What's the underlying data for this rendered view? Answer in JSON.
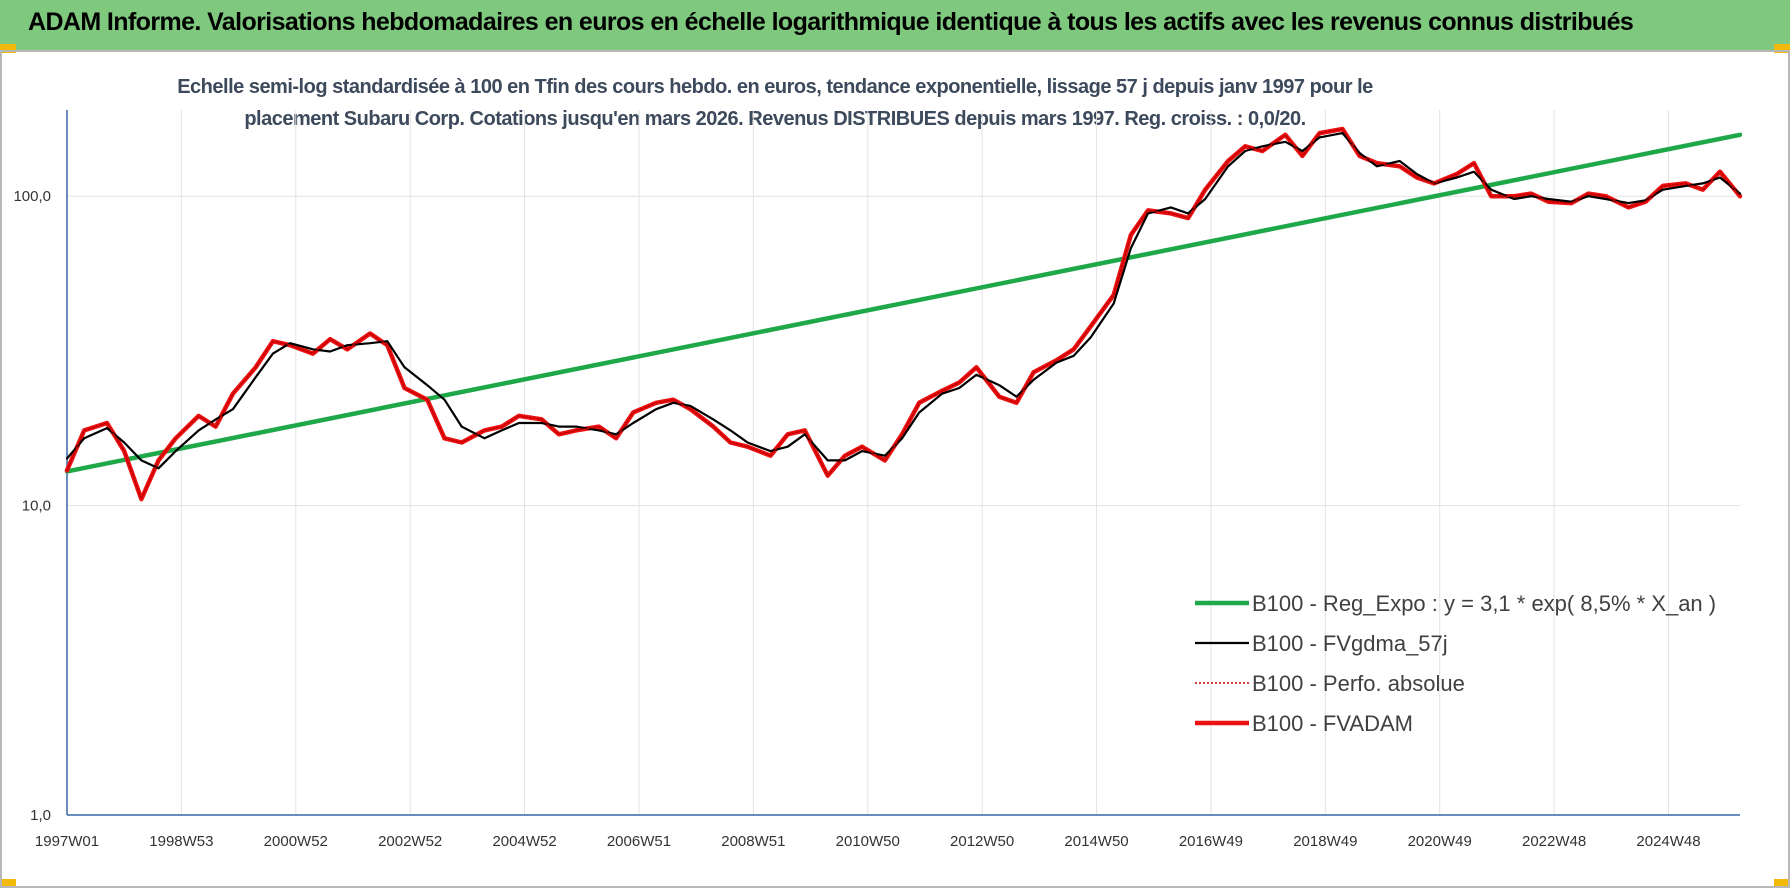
{
  "header": {
    "title": "ADAM Informe. Valorisations hebdomadaires en euros en échelle logarithmique identique à tous les actifs avec les revenus connus distribués"
  },
  "chart_data": {
    "type": "line",
    "title_lines": [
      "Echelle semi-log standardisée à 100 en Tfin des cours hebdo. en euros, tendance exponentielle, lissage 57 j depuis janv 1997 pour le",
      "placement Subaru Corp. Cotations jusqu'en mars 2026. Revenus DISTRIBUES depuis mars 1997.  Reg. croiss. : 0,0/20."
    ],
    "y_scale": "log",
    "ylim": [
      1,
      190
    ],
    "xlim": [
      1997.0,
      2026.25
    ],
    "y_ticks": [
      {
        "value": 1,
        "label": "1,0"
      },
      {
        "value": 10,
        "label": "10,0"
      },
      {
        "value": 100,
        "label": "100,0"
      }
    ],
    "x_ticks": [
      {
        "value": 1997.0,
        "label": "1997W01"
      },
      {
        "value": 1999.0,
        "label": "1998W53"
      },
      {
        "value": 2001.0,
        "label": "2000W52"
      },
      {
        "value": 2003.0,
        "label": "2002W52"
      },
      {
        "value": 2005.0,
        "label": "2004W52"
      },
      {
        "value": 2007.0,
        "label": "2006W51"
      },
      {
        "value": 2009.0,
        "label": "2008W51"
      },
      {
        "value": 2011.0,
        "label": "2010W50"
      },
      {
        "value": 2013.0,
        "label": "2012W50"
      },
      {
        "value": 2015.0,
        "label": "2014W50"
      },
      {
        "value": 2017.0,
        "label": "2016W49"
      },
      {
        "value": 2019.0,
        "label": "2018W49"
      },
      {
        "value": 2021.0,
        "label": "2020W49"
      },
      {
        "value": 2023.0,
        "label": "2022W48"
      },
      {
        "value": 2025.0,
        "label": "2024W48"
      }
    ],
    "grid": {
      "horizontal": true,
      "vertical": true
    },
    "legend_position": "bottom-right",
    "series": [
      {
        "name": "B100 - Reg_Expo : y = 3,1 * exp( 8,5% *  X_an )",
        "color": "#1fa84a",
        "style": "solid-thick",
        "x": [
          1997.0,
          2026.25
        ],
        "y": [
          12.9,
          158
        ]
      },
      {
        "name": "B100 - FVgdma_57j",
        "color": "#000000",
        "style": "solid-thin",
        "x": [
          1997.0,
          1997.3,
          1997.7,
          1998.0,
          1998.3,
          1998.6,
          1998.9,
          1999.3,
          1999.6,
          1999.9,
          2000.3,
          2000.6,
          2000.9,
          2001.3,
          2001.6,
          2001.9,
          2002.3,
          2002.6,
          2002.9,
          2003.3,
          2003.6,
          2003.9,
          2004.3,
          2004.6,
          2004.9,
          2005.3,
          2005.6,
          2005.9,
          2006.3,
          2006.6,
          2006.9,
          2007.3,
          2007.6,
          2007.9,
          2008.3,
          2008.6,
          2008.9,
          2009.3,
          2009.6,
          2009.9,
          2010.3,
          2010.6,
          2010.9,
          2011.3,
          2011.6,
          2011.9,
          2012.3,
          2012.6,
          2012.9,
          2013.3,
          2013.6,
          2013.9,
          2014.3,
          2014.6,
          2014.9,
          2015.3,
          2015.6,
          2015.9,
          2016.3,
          2016.6,
          2016.9,
          2017.3,
          2017.6,
          2017.9,
          2018.3,
          2018.6,
          2018.9,
          2019.3,
          2019.6,
          2019.9,
          2020.3,
          2020.6,
          2020.9,
          2021.3,
          2021.6,
          2021.9,
          2022.3,
          2022.6,
          2022.9,
          2023.3,
          2023.6,
          2023.9,
          2024.3,
          2024.6,
          2024.9,
          2025.3,
          2025.6,
          2025.9,
          2026.25
        ],
        "y": [
          14.2,
          16.5,
          17.8,
          16.0,
          14.0,
          13.2,
          15.0,
          17.5,
          19.0,
          20.5,
          26.0,
          31.0,
          33.5,
          32.0,
          31.5,
          33.0,
          33.5,
          34.0,
          28.0,
          24.5,
          22.0,
          18.0,
          16.5,
          17.5,
          18.5,
          18.5,
          18.0,
          18.0,
          17.5,
          17.0,
          18.5,
          20.5,
          21.5,
          21.0,
          19.0,
          17.5,
          16.0,
          15.0,
          15.5,
          17.0,
          14.0,
          14.0,
          15.0,
          14.5,
          16.5,
          20.0,
          23.0,
          24.0,
          26.5,
          24.5,
          22.5,
          25.5,
          29.0,
          30.5,
          35.0,
          45.0,
          68.0,
          88.0,
          92.0,
          88.0,
          98.0,
          125.0,
          140.0,
          145.0,
          150.0,
          140.0,
          155.0,
          160.0,
          138.0,
          125.0,
          130.0,
          118.0,
          110.0,
          115.0,
          120.0,
          105.0,
          98.0,
          100.0,
          98.0,
          96.0,
          100.0,
          98.0,
          95.0,
          97.0,
          105.0,
          108.0,
          110.0,
          115.0,
          102.0
        ]
      },
      {
        "name": "B100 - Perfo. absolue",
        "color": "#c00000",
        "style": "dotted",
        "x": [
          1997.0,
          1997.3,
          1997.7,
          1998.0,
          1998.3,
          1998.6,
          1998.9,
          1999.3,
          1999.6,
          1999.9,
          2000.3,
          2000.6,
          2000.9,
          2001.3,
          2001.6,
          2001.9,
          2002.3,
          2002.6,
          2002.9,
          2003.3,
          2003.6,
          2003.9,
          2004.3,
          2004.6,
          2004.9,
          2005.3,
          2005.6,
          2005.9,
          2006.3,
          2006.6,
          2006.9,
          2007.3,
          2007.6,
          2007.9,
          2008.3,
          2008.6,
          2008.9,
          2009.3,
          2009.6,
          2009.9,
          2010.3,
          2010.6,
          2010.9,
          2011.3,
          2011.6,
          2011.9,
          2012.3,
          2012.6,
          2012.9,
          2013.3,
          2013.6,
          2013.9,
          2014.3,
          2014.6,
          2014.9,
          2015.3,
          2015.6,
          2015.9,
          2016.3,
          2016.6,
          2016.9,
          2017.3,
          2017.6,
          2017.9,
          2018.3,
          2018.6,
          2018.9,
          2019.3,
          2019.6,
          2019.9,
          2020.3,
          2020.6,
          2020.9,
          2021.3,
          2021.6,
          2021.9,
          2022.3,
          2022.6,
          2022.9,
          2023.3,
          2023.6,
          2023.9,
          2024.3,
          2024.6,
          2024.9,
          2025.3,
          2025.6,
          2025.9,
          2026.25
        ],
        "y": [
          13.0,
          17.5,
          18.5,
          15.0,
          10.5,
          14.0,
          16.5,
          19.5,
          18.0,
          23.0,
          28.0,
          34.0,
          33.0,
          31.0,
          34.5,
          32.0,
          36.0,
          33.0,
          24.0,
          22.0,
          16.5,
          16.0,
          17.5,
          18.0,
          19.5,
          19.0,
          17.0,
          17.5,
          18.0,
          16.5,
          20.0,
          21.5,
          22.0,
          20.5,
          18.0,
          16.0,
          15.5,
          14.5,
          17.0,
          17.5,
          12.5,
          14.5,
          15.5,
          14.0,
          17.0,
          21.5,
          23.5,
          25.0,
          28.0,
          22.5,
          21.5,
          27.0,
          29.5,
          32.0,
          38.0,
          48.0,
          75.0,
          90.0,
          88.0,
          85.0,
          105.0,
          130.0,
          145.0,
          140.0,
          158.0,
          135.0,
          160.0,
          165.0,
          135.0,
          128.0,
          125.0,
          115.0,
          110.0,
          118.0,
          128.0,
          100.0,
          100.0,
          102.0,
          96.0,
          95.0,
          102.0,
          100.0,
          92.0,
          96.0,
          108.0,
          110.0,
          105.0,
          120.0,
          100.0
        ]
      },
      {
        "name": "B100 - FVADAM",
        "color": "#ee1111",
        "style": "solid-thick",
        "x": [
          1997.0,
          1997.3,
          1997.7,
          1998.0,
          1998.3,
          1998.6,
          1998.9,
          1999.3,
          1999.6,
          1999.9,
          2000.3,
          2000.6,
          2000.9,
          2001.3,
          2001.6,
          2001.9,
          2002.3,
          2002.6,
          2002.9,
          2003.3,
          2003.6,
          2003.9,
          2004.3,
          2004.6,
          2004.9,
          2005.3,
          2005.6,
          2005.9,
          2006.3,
          2006.6,
          2006.9,
          2007.3,
          2007.6,
          2007.9,
          2008.3,
          2008.6,
          2008.9,
          2009.3,
          2009.6,
          2009.9,
          2010.3,
          2010.6,
          2010.9,
          2011.3,
          2011.6,
          2011.9,
          2012.3,
          2012.6,
          2012.9,
          2013.3,
          2013.6,
          2013.9,
          2014.3,
          2014.6,
          2014.9,
          2015.3,
          2015.6,
          2015.9,
          2016.3,
          2016.6,
          2016.9,
          2017.3,
          2017.6,
          2017.9,
          2018.3,
          2018.6,
          2018.9,
          2019.3,
          2019.6,
          2019.9,
          2020.3,
          2020.6,
          2020.9,
          2021.3,
          2021.6,
          2021.9,
          2022.3,
          2022.6,
          2022.9,
          2023.3,
          2023.6,
          2023.9,
          2024.3,
          2024.6,
          2024.9,
          2025.3,
          2025.6,
          2025.9,
          2026.25
        ],
        "y": [
          13.0,
          17.5,
          18.5,
          15.0,
          10.5,
          14.0,
          16.5,
          19.5,
          18.0,
          23.0,
          28.0,
          34.0,
          33.0,
          31.0,
          34.5,
          32.0,
          36.0,
          33.0,
          24.0,
          22.0,
          16.5,
          16.0,
          17.5,
          18.0,
          19.5,
          19.0,
          17.0,
          17.5,
          18.0,
          16.5,
          20.0,
          21.5,
          22.0,
          20.5,
          18.0,
          16.0,
          15.5,
          14.5,
          17.0,
          17.5,
          12.5,
          14.5,
          15.5,
          14.0,
          17.0,
          21.5,
          23.5,
          25.0,
          28.0,
          22.5,
          21.5,
          27.0,
          29.5,
          32.0,
          38.0,
          48.0,
          75.0,
          90.0,
          88.0,
          85.0,
          105.0,
          130.0,
          145.0,
          140.0,
          158.0,
          135.0,
          160.0,
          165.0,
          135.0,
          128.0,
          125.0,
          115.0,
          110.0,
          118.0,
          128.0,
          100.0,
          100.0,
          102.0,
          96.0,
          95.0,
          102.0,
          100.0,
          92.0,
          96.0,
          108.0,
          110.0,
          105.0,
          120.0,
          100.0
        ]
      }
    ]
  }
}
